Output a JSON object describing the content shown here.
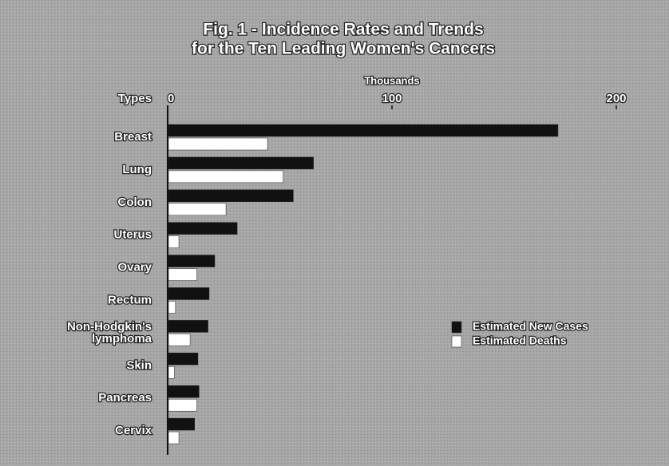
{
  "chart_data": {
    "type": "bar",
    "orientation": "horizontal",
    "title": [
      "Fig. 1 - Incidence Rates and Trends",
      "for the Ten Leading Women's Cancers"
    ],
    "xlabel": "Thousands",
    "category_label": "Types",
    "categories": [
      "Breast",
      "Lung",
      "Colon",
      "Uterus",
      "Ovary",
      "Rectum",
      "Non-Hodgkin's lymphoma",
      "Skin",
      "Pancreas",
      "Cervix"
    ],
    "series": [
      {
        "name": "Estimated New Cases",
        "color": "#111111",
        "values": [
          174,
          65,
          56,
          31,
          21,
          18.5,
          18,
          13.5,
          14,
          12
        ]
      },
      {
        "name": "Estimated Deaths",
        "color": "#ffffff",
        "values": [
          44.5,
          51.5,
          26,
          5,
          13,
          3.5,
          10,
          3,
          13,
          5
        ]
      }
    ],
    "xlim": [
      0,
      200
    ],
    "xticks": [
      0,
      100,
      200
    ],
    "legend": "right"
  }
}
